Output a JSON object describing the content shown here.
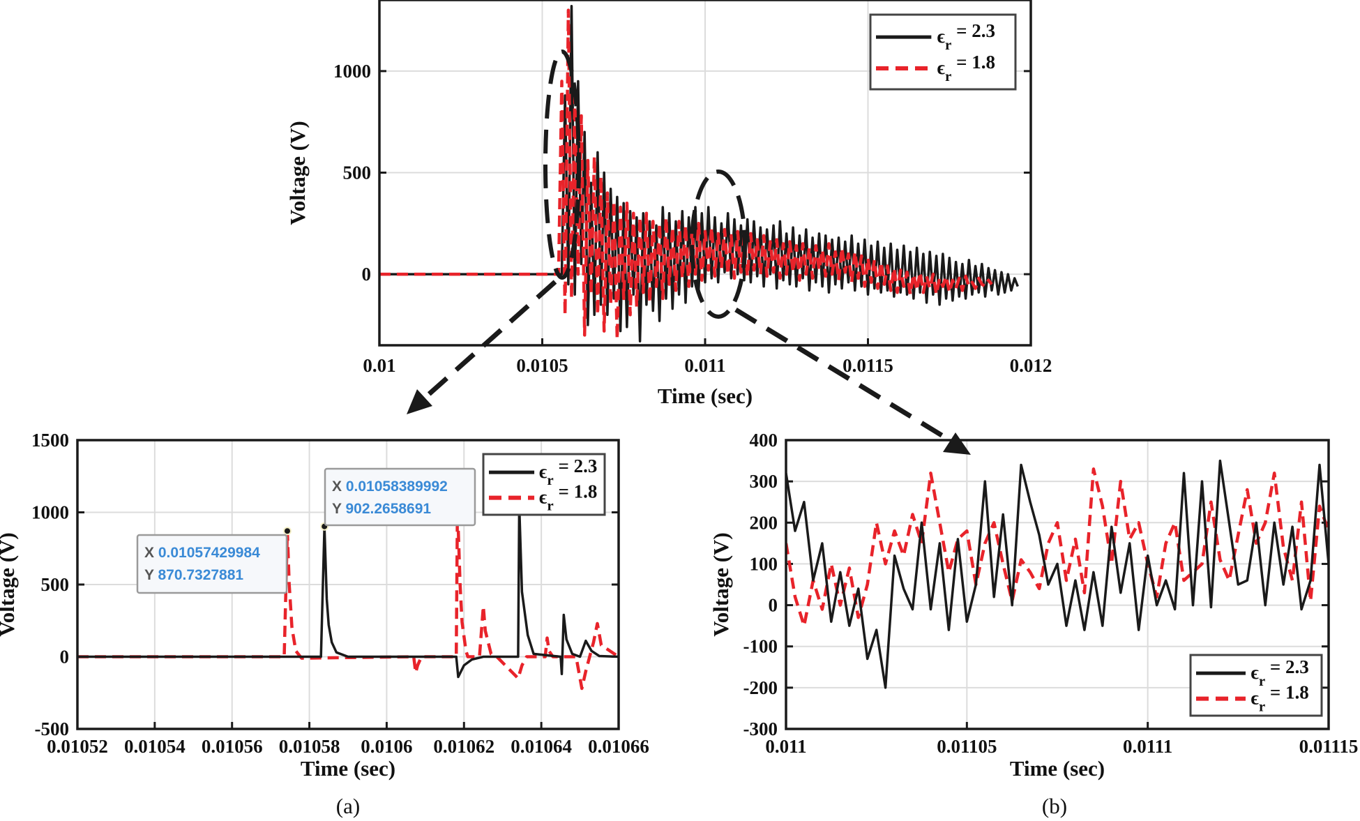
{
  "colors": {
    "black_series": "#1a1a1a",
    "red_series": "#e8232a",
    "grid": "#dcdcdc",
    "tip_value": "#3a8ad6",
    "tip_key": "#555555"
  },
  "chart_data": [
    {
      "id": "main",
      "type": "line",
      "xlabel": "Time (sec)",
      "ylabel": "Voltage (V)",
      "xlim": [
        0.01,
        0.012
      ],
      "ylim": [
        -350,
        1350
      ],
      "xticks": [
        0.01,
        0.0105,
        0.011,
        0.0115,
        0.012
      ],
      "xtick_labels": [
        "0.01",
        "0.0105",
        "0.011",
        "0.0115",
        "0.012"
      ],
      "yticks": [
        0,
        500,
        1000
      ],
      "ytick_labels": [
        "0",
        "500",
        "1000"
      ],
      "grid": true,
      "legend_position": "top-right",
      "series": [
        {
          "name": "εr = 2.3",
          "symbol": "ϵ",
          "sub": "r",
          "value_label": "= 2.3",
          "style": "solid",
          "color_key": "black_series",
          "zero_before": 0.01056,
          "start": 0.01056,
          "step": 1e-05,
          "values": [
            0,
            880,
            -50,
            1320,
            -100,
            950,
            50,
            700,
            -250,
            450,
            -200,
            600,
            -150,
            500,
            -200,
            420,
            -120,
            380,
            -280,
            350,
            -260,
            310,
            -100,
            280,
            -330,
            300,
            -150,
            260,
            -180,
            240,
            -230,
            330,
            -120,
            300,
            -170,
            260,
            -100,
            310,
            -140,
            280,
            -60,
            330,
            -80,
            300,
            -40,
            330,
            -20,
            280,
            -40,
            250,
            10,
            300,
            -20,
            270,
            0,
            240,
            -30,
            270,
            -40,
            260,
            -10,
            230,
            -60,
            220,
            0,
            240,
            -70,
            260,
            -30,
            200,
            -50,
            230,
            -60,
            190,
            -20,
            220,
            -80,
            180,
            -40,
            200,
            -60,
            190,
            -90,
            170,
            -50,
            180,
            -70,
            160,
            -40,
            190,
            -80,
            150,
            -60,
            170,
            -100,
            140,
            -70,
            160,
            -90,
            130,
            -80,
            150,
            -110,
            120,
            -90,
            140,
            -100,
            110,
            -120,
            130,
            -90,
            100,
            -140,
            110,
            -100,
            90,
            -150,
            100,
            -120,
            80,
            -130,
            60,
            -110,
            50,
            -120,
            70,
            -100,
            40,
            -90,
            50,
            -110,
            30,
            -80,
            20,
            -100,
            10,
            -90,
            0,
            -80,
            -20,
            -60
          ]
        },
        {
          "name": "εr = 1.8",
          "symbol": "ϵ",
          "sub": "r",
          "value_label": "= 1.8",
          "style": "dashed",
          "color_key": "red_series",
          "zero_before": 0.01055,
          "start": 0.01055,
          "step": 1e-05,
          "values": [
            0,
            950,
            -200,
            1300,
            -120,
            870,
            0,
            780,
            -300,
            560,
            -100,
            580,
            -200,
            480,
            -280,
            400,
            -150,
            360,
            -320,
            330,
            -120,
            350,
            -200,
            300,
            -160,
            280,
            -90,
            300,
            -140,
            260,
            -60,
            250,
            -120,
            280,
            -50,
            230,
            -80,
            260,
            -20,
            240,
            -60,
            220,
            0,
            250,
            -30,
            210,
            20,
            230,
            -10,
            200,
            30,
            220,
            0,
            190,
            -20,
            210,
            10,
            180,
            -10,
            200,
            20,
            170,
            0,
            190,
            -10,
            160,
            10,
            170,
            -20,
            150,
            0,
            160,
            10,
            140,
            -30,
            150,
            0,
            130,
            -20,
            140,
            20,
            120,
            -10,
            150,
            0,
            110,
            -30,
            130,
            10,
            100,
            -40,
            110,
            -20,
            90,
            -60,
            80,
            -40,
            70,
            -70,
            60,
            -50,
            40,
            -80,
            30,
            -90,
            20,
            -60,
            10,
            -100,
            0,
            -80,
            10,
            -90,
            -10,
            -70,
            0,
            -100,
            -20,
            -60,
            -10,
            -90,
            -30,
            -70,
            -20,
            -80,
            -10,
            -60,
            -40,
            -70,
            -20,
            -50,
            -60,
            -30,
            -50
          ]
        }
      ]
    },
    {
      "id": "a",
      "type": "line",
      "panel_label": "(a)",
      "xlabel": "Time (sec)",
      "ylabel": "Voltage (V)",
      "xlim": [
        0.01052,
        0.01066
      ],
      "ylim": [
        -500,
        1500
      ],
      "xticks": [
        0.01052,
        0.01054,
        0.01056,
        0.01058,
        0.0106,
        0.01062,
        0.01064,
        0.01066
      ],
      "xtick_labels": [
        "0.01052",
        "0.01054",
        "0.01056",
        "0.01058",
        "0.0106",
        "0.01062",
        "0.01064",
        "0.01066"
      ],
      "yticks": [
        -500,
        0,
        500,
        1000,
        1500
      ],
      "ytick_labels": [
        "-500",
        "0",
        "500",
        "1000",
        "1500"
      ],
      "grid": true,
      "legend_position": "top-right",
      "series": [
        {
          "name": "εr = 2.3",
          "symbol": "ϵ",
          "sub": "r",
          "value_label": "= 2.3",
          "style": "solid",
          "color_key": "black_series",
          "x": [
            0.01052,
            0.010583,
            0.0105839,
            0.0105845,
            0.010585,
            0.0105858,
            0.010587,
            0.01059,
            0.010618,
            0.0106185,
            0.01062,
            0.010622,
            0.010625,
            0.010634,
            0.0106343,
            0.010635,
            0.0106365,
            0.010638,
            0.010645,
            0.0106453,
            0.0106458,
            0.0106465,
            0.010648,
            0.01065,
            0.0106515,
            0.010653,
            0.010655,
            0.01066
          ],
          "y": [
            0,
            0,
            902,
            400,
            220,
            100,
            30,
            0,
            0,
            -140,
            -60,
            -20,
            0,
            0,
            1050,
            450,
            150,
            20,
            0,
            -120,
            290,
            120,
            20,
            0,
            110,
            40,
            5,
            0
          ]
        },
        {
          "name": "εr = 1.8",
          "symbol": "ϵ",
          "sub": "r",
          "value_label": "= 1.8",
          "style": "dashed",
          "color_key": "red_series",
          "x": [
            0.01052,
            0.0105735,
            0.0105743,
            0.0105748,
            0.0105755,
            0.0105765,
            0.010578,
            0.010607,
            0.0106075,
            0.010608,
            0.010609,
            0.010618,
            0.0106183,
            0.010619,
            0.0106195,
            0.0106205,
            0.010621,
            0.010624,
            0.010625,
            0.0106255,
            0.010627,
            0.0106285,
            0.010634,
            0.010635,
            0.0106362,
            0.010641,
            0.0106415,
            0.010642,
            0.010643,
            0.010649,
            0.0106505,
            0.0106515,
            0.0106535,
            0.0106545,
            0.0106555,
            0.01066
          ],
          "y": [
            0,
            0,
            871,
            500,
            200,
            40,
            -10,
            0,
            -110,
            -60,
            0,
            0,
            1050,
            500,
            240,
            40,
            0,
            0,
            350,
            180,
            20,
            0,
            -150,
            -60,
            0,
            0,
            130,
            40,
            0,
            0,
            -220,
            -100,
            100,
            230,
            80,
            0
          ]
        }
      ],
      "datatips": [
        {
          "x_key": "X",
          "x_value": "0.01057429984",
          "y_key": "Y",
          "y_value": "870.7327881",
          "anchor_x": 0.01057429984,
          "anchor_y": 870.7327881
        },
        {
          "x_key": "X",
          "x_value": "0.01058389992",
          "y_key": "Y",
          "y_value": "902.2658691",
          "anchor_x": 0.01058389992,
          "anchor_y": 902.2658691
        }
      ]
    },
    {
      "id": "b",
      "type": "line",
      "panel_label": "(b)",
      "xlabel": "Time (sec)",
      "ylabel": "Voltage (V)",
      "xlim": [
        0.011,
        0.01115
      ],
      "ylim": [
        -300,
        400
      ],
      "xticks": [
        0.011,
        0.01105,
        0.0111,
        0.01115
      ],
      "xtick_labels": [
        "0.011",
        "0.01105",
        "0.0111",
        "0.01115"
      ],
      "yticks": [
        -300,
        -200,
        -100,
        0,
        100,
        200,
        300,
        400
      ],
      "ytick_labels": [
        "-300",
        "-200",
        "-100",
        "0",
        "100",
        "200",
        "300",
        "400"
      ],
      "grid": true,
      "legend_position": "bottom-right",
      "series": [
        {
          "name": "εr = 2.3",
          "symbol": "ϵ",
          "sub": "r",
          "value_label": "= 2.3",
          "style": "solid",
          "color_key": "black_series",
          "start": 0.011,
          "step": 2.5e-06,
          "values": [
            320,
            180,
            250,
            60,
            150,
            -40,
            80,
            -50,
            40,
            -130,
            -60,
            -200,
            120,
            40,
            -10,
            200,
            -10,
            150,
            -60,
            160,
            -40,
            50,
            300,
            20,
            220,
            0,
            340,
            250,
            170,
            50,
            100,
            -50,
            60,
            -60,
            80,
            -50,
            190,
            30,
            150,
            -60,
            120,
            0,
            60,
            -10,
            320,
            0,
            300,
            -5,
            350,
            200,
            50,
            60,
            200,
            0,
            200,
            50,
            190,
            -10,
            60,
            340,
            100
          ]
        },
        {
          "name": "εr = 1.8",
          "symbol": "ϵ",
          "sub": "r",
          "value_label": "= 1.8",
          "style": "dashed",
          "color_key": "red_series",
          "start": 0.011,
          "step": 2.5e-06,
          "values": [
            150,
            20,
            -50,
            60,
            -10,
            100,
            0,
            90,
            -30,
            50,
            200,
            100,
            180,
            120,
            220,
            150,
            320,
            200,
            80,
            160,
            180,
            50,
            150,
            200,
            100,
            10,
            110,
            80,
            40,
            150,
            200,
            60,
            160,
            30,
            330,
            240,
            100,
            300,
            160,
            200,
            100,
            20,
            150,
            200,
            60,
            80,
            100,
            250,
            110,
            60,
            170,
            280,
            150,
            200,
            320,
            140,
            60,
            250,
            10,
            240,
            180
          ]
        }
      ]
    }
  ]
}
